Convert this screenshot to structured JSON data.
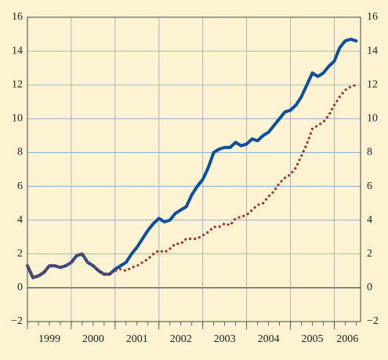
{
  "chart_data": {
    "type": "line",
    "x": [
      1999,
      1999.125,
      1999.25,
      1999.375,
      1999.5,
      1999.625,
      1999.75,
      1999.875,
      2000,
      2000.125,
      2000.25,
      2000.375,
      2000.5,
      2000.625,
      2000.75,
      2000.875,
      2001,
      2001.125,
      2001.25,
      2001.375,
      2001.5,
      2001.625,
      2001.75,
      2001.875,
      2002,
      2002.125,
      2002.25,
      2002.375,
      2002.5,
      2002.625,
      2002.75,
      2002.875,
      2003,
      2003.125,
      2003.25,
      2003.375,
      2003.5,
      2003.625,
      2003.75,
      2003.875,
      2004,
      2004.125,
      2004.25,
      2004.375,
      2004.5,
      2004.625,
      2004.75,
      2004.875,
      2005,
      2005.125,
      2005.25,
      2005.375,
      2005.5,
      2005.625,
      2005.75,
      2005.875,
      2006,
      2006.125,
      2006.25,
      2006.375,
      2006.5
    ],
    "series": [
      {
        "color": "#0d4f9f",
        "style": "solid",
        "values": [
          1.3,
          0.6,
          0.7,
          0.9,
          1.3,
          1.3,
          1.2,
          1.3,
          1.5,
          1.9,
          2.0,
          1.5,
          1.3,
          1.0,
          0.8,
          0.8,
          1.1,
          1.3,
          1.5,
          2.0,
          2.4,
          2.9,
          3.4,
          3.8,
          4.1,
          3.9,
          4.0,
          4.4,
          4.6,
          4.8,
          5.5,
          6.0,
          6.4,
          7.1,
          8.0,
          8.2,
          8.3,
          8.3,
          8.6,
          8.4,
          8.5,
          8.8,
          8.7,
          9.0,
          9.2,
          9.6,
          10.0,
          10.4,
          10.5,
          10.8,
          11.3,
          12.0,
          12.7,
          12.5,
          12.7,
          13.1,
          13.4,
          14.2,
          14.6,
          14.7,
          14.6
        ]
      },
      {
        "color": "#a0352c",
        "style": "dotted",
        "values": [
          1.3,
          0.6,
          0.7,
          0.9,
          1.3,
          1.3,
          1.2,
          1.3,
          1.5,
          1.9,
          2.0,
          1.5,
          1.3,
          1.0,
          0.8,
          0.8,
          1.0,
          1.1,
          1.0,
          1.2,
          1.3,
          1.5,
          1.7,
          2.0,
          2.2,
          2.1,
          2.3,
          2.6,
          2.6,
          2.9,
          2.9,
          2.9,
          3.1,
          3.3,
          3.6,
          3.6,
          3.8,
          3.7,
          4.1,
          4.2,
          4.3,
          4.6,
          4.9,
          5.0,
          5.4,
          5.7,
          6.2,
          6.5,
          6.7,
          7.1,
          7.8,
          8.5,
          9.4,
          9.6,
          9.8,
          10.2,
          10.8,
          11.3,
          11.7,
          11.9,
          12.0
        ]
      }
    ],
    "xlim": [
      1999,
      2006.6
    ],
    "xticks": [
      {
        "value": 1999,
        "label": "1999"
      },
      {
        "value": 2000,
        "label": "2000"
      },
      {
        "value": 2001,
        "label": "2001"
      },
      {
        "value": 2002,
        "label": "2002"
      },
      {
        "value": 2003,
        "label": "2003"
      },
      {
        "value": 2004,
        "label": "2004"
      },
      {
        "value": 2005,
        "label": "2005"
      },
      {
        "value": 2006,
        "label": "2006"
      }
    ],
    "ylim": [
      -2,
      16
    ],
    "yticks": [
      {
        "value": -2,
        "label": "−2"
      },
      0,
      2,
      4,
      6,
      8,
      10,
      12,
      14,
      16
    ],
    "y2lim": [
      -2,
      16
    ],
    "y2ticks": [
      {
        "value": -2,
        "label": "−2"
      },
      0,
      2,
      4,
      6,
      8,
      10,
      12,
      14,
      16
    ],
    "grid": true
  }
}
